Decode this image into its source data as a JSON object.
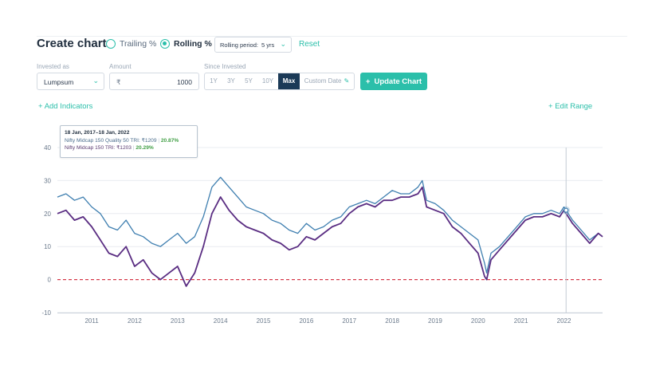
{
  "header": {
    "title": "Create chart",
    "mode_options": [
      {
        "label": "Trailing %",
        "selected": false
      },
      {
        "label": "Rolling %",
        "selected": true
      }
    ],
    "rolling_period_label": "Rolling period:",
    "rolling_period_value": "5 yrs",
    "reset_label": "Reset"
  },
  "form": {
    "invested_as_label": "Invested as",
    "invested_as_value": "Lumpsum",
    "amount_label": "Amount",
    "currency_symbol": "₹",
    "amount_value": "1000",
    "since_invested_label": "Since Invested",
    "ranges": [
      "1Y",
      "3Y",
      "5Y",
      "10Y",
      "Max",
      "Custom Date"
    ],
    "active_range": "Max",
    "update_label": "Update Chart"
  },
  "links": {
    "add_indicators": "Add Indicators",
    "edit_range": "Edit Range"
  },
  "tooltip": {
    "date": "18 Jan, 2017–18 Jan, 2022",
    "series1_label": "Nifty Midcap 150 Quality 50 TRI: ₹1209",
    "series1_pct": "20.87%",
    "series2_label": "Nifty Midcap 150 TRI: ₹1203",
    "series2_pct": "20.29%"
  },
  "chart_data": {
    "type": "line",
    "ylim": [
      -10,
      40
    ],
    "yticks": [
      40,
      30,
      20,
      10,
      0,
      -10
    ],
    "xlim": [
      2010.2,
      2022.9
    ],
    "xticks": [
      "2011",
      "2012",
      "2013",
      "2014",
      "2015",
      "2016",
      "2017",
      "2018",
      "2019",
      "2020",
      "2021",
      "2022"
    ],
    "reference_line": 0,
    "hover_x": 2022.05,
    "colors": {
      "series1": "#3f7fb0",
      "series2": "#5a2d82",
      "zero": "#d63a4a",
      "grid": "#e9ecf0"
    },
    "series": [
      {
        "name": "Nifty Midcap 150 Quality 50 TRI",
        "x": [
          2010.2,
          2010.4,
          2010.6,
          2010.8,
          2011.0,
          2011.2,
          2011.4,
          2011.6,
          2011.8,
          2012.0,
          2012.2,
          2012.4,
          2012.6,
          2012.8,
          2013.0,
          2013.2,
          2013.4,
          2013.6,
          2013.8,
          2014.0,
          2014.2,
          2014.4,
          2014.6,
          2014.8,
          2015.0,
          2015.2,
          2015.4,
          2015.6,
          2015.8,
          2016.0,
          2016.2,
          2016.4,
          2016.6,
          2016.8,
          2017.0,
          2017.2,
          2017.4,
          2017.6,
          2017.8,
          2018.0,
          2018.2,
          2018.4,
          2018.6,
          2018.7,
          2018.8,
          2019.0,
          2019.2,
          2019.4,
          2019.6,
          2019.8,
          2020.0,
          2020.15,
          2020.2,
          2020.3,
          2020.5,
          2020.7,
          2020.9,
          2021.1,
          2021.3,
          2021.5,
          2021.7,
          2021.9,
          2022.0,
          2022.05,
          2022.2,
          2022.4,
          2022.6,
          2022.8,
          2022.9
        ],
        "values": [
          25,
          26,
          24,
          25,
          22,
          20,
          16,
          15,
          18,
          14,
          13,
          11,
          10,
          12,
          14,
          11,
          13,
          19,
          28,
          31,
          28,
          25,
          22,
          21,
          20,
          18,
          17,
          15,
          14,
          17,
          15,
          16,
          18,
          19,
          22,
          23,
          24,
          23,
          25,
          27,
          26,
          26,
          28,
          30,
          24,
          23,
          21,
          18,
          16,
          14,
          12,
          5,
          2,
          8,
          10,
          13,
          16,
          19,
          20,
          20,
          21,
          20,
          22,
          21,
          18,
          15,
          12,
          14,
          13
        ]
      },
      {
        "name": "Nifty Midcap 150 TRI",
        "x": [
          2010.2,
          2010.4,
          2010.6,
          2010.8,
          2011.0,
          2011.2,
          2011.4,
          2011.6,
          2011.8,
          2012.0,
          2012.2,
          2012.4,
          2012.6,
          2012.8,
          2013.0,
          2013.2,
          2013.4,
          2013.6,
          2013.8,
          2014.0,
          2014.2,
          2014.4,
          2014.6,
          2014.8,
          2015.0,
          2015.2,
          2015.4,
          2015.6,
          2015.8,
          2016.0,
          2016.2,
          2016.4,
          2016.6,
          2016.8,
          2017.0,
          2017.2,
          2017.4,
          2017.6,
          2017.8,
          2018.0,
          2018.2,
          2018.4,
          2018.6,
          2018.7,
          2018.8,
          2019.0,
          2019.2,
          2019.4,
          2019.6,
          2019.8,
          2020.0,
          2020.15,
          2020.2,
          2020.3,
          2020.5,
          2020.7,
          2020.9,
          2021.1,
          2021.3,
          2021.5,
          2021.7,
          2021.9,
          2022.0,
          2022.05,
          2022.2,
          2022.4,
          2022.6,
          2022.8,
          2022.9
        ],
        "values": [
          20,
          21,
          18,
          19,
          16,
          12,
          8,
          7,
          10,
          4,
          6,
          2,
          0,
          2,
          4,
          -2,
          2,
          10,
          20,
          25,
          21,
          18,
          16,
          15,
          14,
          12,
          11,
          9,
          10,
          13,
          12,
          14,
          16,
          17,
          20,
          22,
          23,
          22,
          24,
          24,
          25,
          25,
          26,
          28,
          22,
          21,
          20,
          16,
          14,
          11,
          8,
          1,
          0,
          6,
          9,
          12,
          15,
          18,
          19,
          19,
          20,
          19,
          21,
          20,
          17,
          14,
          11,
          14,
          13
        ]
      }
    ]
  }
}
